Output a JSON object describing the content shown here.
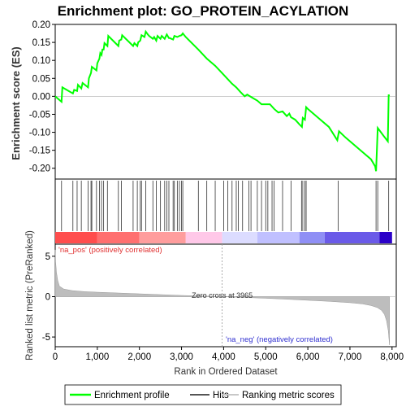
{
  "chart_data": {
    "type": "line",
    "title": "Enrichment plot: GO_PROTEIN_ACYLATION",
    "top_panel": {
      "ylabel": "Enrichment score (ES)",
      "ylim": [
        -0.23,
        0.2
      ],
      "yticks": [
        0.2,
        0.15,
        0.1,
        0.05,
        0.0,
        -0.05,
        -0.1,
        -0.15,
        -0.2
      ],
      "ytick_labels": [
        "0.20",
        "0.15",
        "0.10",
        "0.05",
        "0.00",
        "-0.05",
        "-0.10",
        "-0.15",
        "-0.20"
      ],
      "line_color": "#00ff00",
      "series": [
        {
          "name": "Enrichment profile",
          "x": [
            0,
            150,
            170,
            420,
            450,
            520,
            540,
            620,
            650,
            780,
            800,
            850,
            870,
            980,
            1000,
            1050,
            1070,
            1100,
            1120,
            1150,
            1170,
            1240,
            1260,
            1500,
            1520,
            1570,
            1590,
            1850,
            1880,
            1950,
            1970,
            2020,
            2050,
            2120,
            2150,
            2200,
            2230,
            2320,
            2350,
            2400,
            2430,
            2500,
            2530,
            2600,
            2650,
            2700,
            2720,
            2800,
            2830,
            2900,
            2950,
            3000,
            3030,
            3100,
            3400,
            3600,
            3800,
            4000,
            4200,
            4300,
            4400,
            4500,
            4560,
            4600,
            4700,
            4800,
            4900,
            5000,
            5100,
            5200,
            5300,
            5400,
            5500,
            5560,
            5600,
            5700,
            5800,
            5860,
            5880,
            5930,
            5960,
            6000,
            6100,
            6300,
            6500,
            6700,
            6740,
            6900,
            7100,
            7300,
            7500,
            7600,
            7620,
            7640,
            7660,
            7800,
            7900,
            7920,
            7930
          ],
          "y": [
            0.0,
            -0.015,
            0.025,
            0.008,
            0.018,
            0.015,
            0.032,
            0.022,
            0.037,
            0.025,
            0.05,
            0.065,
            0.082,
            0.072,
            0.092,
            0.105,
            0.12,
            0.115,
            0.13,
            0.13,
            0.148,
            0.14,
            0.168,
            0.14,
            0.155,
            0.158,
            0.17,
            0.14,
            0.148,
            0.14,
            0.15,
            0.155,
            0.17,
            0.165,
            0.18,
            0.172,
            0.168,
            0.16,
            0.165,
            0.155,
            0.168,
            0.16,
            0.168,
            0.16,
            0.172,
            0.162,
            0.162,
            0.158,
            0.168,
            0.165,
            0.168,
            0.17,
            0.175,
            0.165,
            0.13,
            0.105,
            0.085,
            0.06,
            0.035,
            0.025,
            0.012,
            0.0,
            0.005,
            0.002,
            -0.005,
            -0.012,
            -0.022,
            -0.022,
            -0.022,
            -0.035,
            -0.045,
            -0.042,
            -0.055,
            -0.048,
            -0.058,
            -0.065,
            -0.078,
            -0.085,
            -0.06,
            -0.065,
            -0.03,
            -0.035,
            -0.045,
            -0.065,
            -0.085,
            -0.122,
            -0.097,
            -0.115,
            -0.135,
            -0.155,
            -0.175,
            -0.195,
            -0.208,
            -0.15,
            -0.088,
            -0.11,
            -0.125,
            0.005,
            0.0
          ]
        }
      ]
    },
    "hits_panel": {
      "hit_positions": [
        150,
        420,
        520,
        620,
        780,
        850,
        870,
        980,
        1050,
        1100,
        1150,
        1240,
        1500,
        1570,
        1850,
        1950,
        2020,
        2050,
        2150,
        2320,
        2400,
        2500,
        2600,
        2650,
        2700,
        2800,
        2830,
        2900,
        2950,
        3000,
        3030,
        3400,
        3600,
        3800,
        4000,
        4100,
        4200,
        4300,
        4350,
        4450,
        4600,
        4650,
        4800,
        4900,
        5000,
        5050,
        5150,
        5200,
        5400,
        5600,
        5850,
        5880,
        5930,
        5960,
        6720,
        7620,
        7660,
        7920
      ],
      "color_bar": {
        "segments": [
          {
            "from": 0,
            "to": 1000,
            "color": "#ff4d4d"
          },
          {
            "from": 1000,
            "to": 2000,
            "color": "#ff6f6f"
          },
          {
            "from": 2000,
            "to": 3100,
            "color": "#ff9d9d"
          },
          {
            "from": 3100,
            "to": 3965,
            "color": "#ffc8e8"
          },
          {
            "from": 3965,
            "to": 4800,
            "color": "#dcdcff"
          },
          {
            "from": 4800,
            "to": 5800,
            "color": "#c0c0ff"
          },
          {
            "from": 5800,
            "to": 6400,
            "color": "#8f8ff5"
          },
          {
            "from": 6400,
            "to": 7700,
            "color": "#6a5ae8"
          },
          {
            "from": 7700,
            "to": 8000,
            "color": "#2a00c8"
          }
        ]
      },
      "pos_label": "'na_pos' (positively correlated)",
      "neg_label": "'na_neg' (negatively correlated)"
    },
    "bottom_panel": {
      "ylabel": "Ranked list metric (PreRanked)",
      "xlabel": "Rank in Ordered Dataset",
      "ylim": [
        -6.2,
        6.5
      ],
      "yticks": [
        5,
        0,
        -5
      ],
      "xlim": [
        0,
        8100
      ],
      "xticks": [
        0,
        1000,
        2000,
        3000,
        4000,
        5000,
        6000,
        7000,
        8000
      ],
      "xtick_labels": [
        "0",
        "1,000",
        "2,000",
        "3,000",
        "4,000",
        "5,000",
        "6,000",
        "7,000",
        "8,000"
      ],
      "zero_cross": 3965,
      "zero_cross_label": "Zero cross at 3965",
      "metric_curve": {
        "x": [
          0,
          10,
          30,
          60,
          100,
          200,
          400,
          700,
          1000,
          1500,
          2000,
          2500,
          3000,
          3500,
          3965,
          4500,
          5000,
          5500,
          6000,
          6500,
          7000,
          7300,
          7500,
          7650,
          7750,
          7820,
          7870,
          7910,
          7940
        ],
        "y": [
          5.8,
          4.3,
          3.0,
          2.0,
          1.3,
          0.95,
          0.75,
          0.62,
          0.55,
          0.45,
          0.35,
          0.25,
          0.15,
          0.07,
          0.0,
          -0.1,
          -0.2,
          -0.32,
          -0.45,
          -0.58,
          -0.75,
          -0.9,
          -1.1,
          -1.35,
          -1.7,
          -2.2,
          -3.0,
          -4.2,
          -6.0
        ]
      }
    },
    "legend": {
      "items": [
        {
          "label": "Enrichment profile",
          "color": "#00ff00"
        },
        {
          "label": "Hits",
          "color": "#555555"
        },
        {
          "label": "Ranking metric scores",
          "color": "#c8c8c8"
        }
      ]
    }
  }
}
